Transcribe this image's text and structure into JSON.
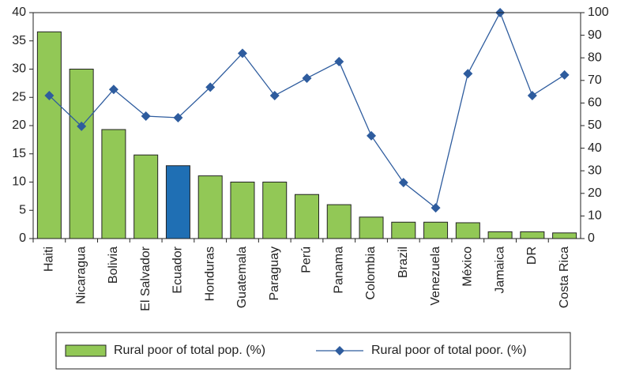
{
  "chart_data": {
    "type": "combo",
    "categories": [
      "Haiti",
      "Nicaragua",
      "Bolivia",
      "El Salvador",
      "Ecuador",
      "Honduras",
      "Guatemala",
      "Paraguay",
      "Perú",
      "Panama",
      "Colombia",
      "Brazil",
      "Venezuela",
      "México",
      "Jamaica",
      "DR",
      "Costa Rica"
    ],
    "series": [
      {
        "name": "Rural poor of total pop. (%)",
        "type": "bar",
        "color": "#92c856",
        "colors": [
          "#92c856",
          "#92c856",
          "#92c856",
          "#92c856",
          "#1f6fb4",
          "#92c856",
          "#92c856",
          "#92c856",
          "#92c856",
          "#92c856",
          "#92c856",
          "#92c856",
          "#92c856",
          "#92c856",
          "#92c856",
          "#92c856",
          "#92c856"
        ],
        "values": [
          36.6,
          30,
          19.3,
          14.8,
          12.9,
          11.1,
          10,
          10,
          7.8,
          6,
          3.8,
          2.9,
          2.9,
          2.8,
          1.2,
          1.2,
          1.0
        ]
      },
      {
        "name": "Rural poor of total poor. (%)",
        "type": "line",
        "axis": "y2",
        "color": "#2e5c9e",
        "values": [
          63.3,
          49.7,
          66,
          54.2,
          53.5,
          67,
          82,
          63.3,
          71,
          78.3,
          45.5,
          24.8,
          13.6,
          73,
          100,
          63.3,
          72.4
        ]
      }
    ],
    "ylim": [
      0,
      40
    ],
    "yticks": [
      0,
      5,
      10,
      15,
      20,
      25,
      30,
      35,
      40
    ],
    "y2lim": [
      0,
      100
    ],
    "y2ticks": [
      0,
      10,
      20,
      30,
      40,
      50,
      60,
      70,
      80,
      90,
      100
    ],
    "legend": "bottom"
  }
}
